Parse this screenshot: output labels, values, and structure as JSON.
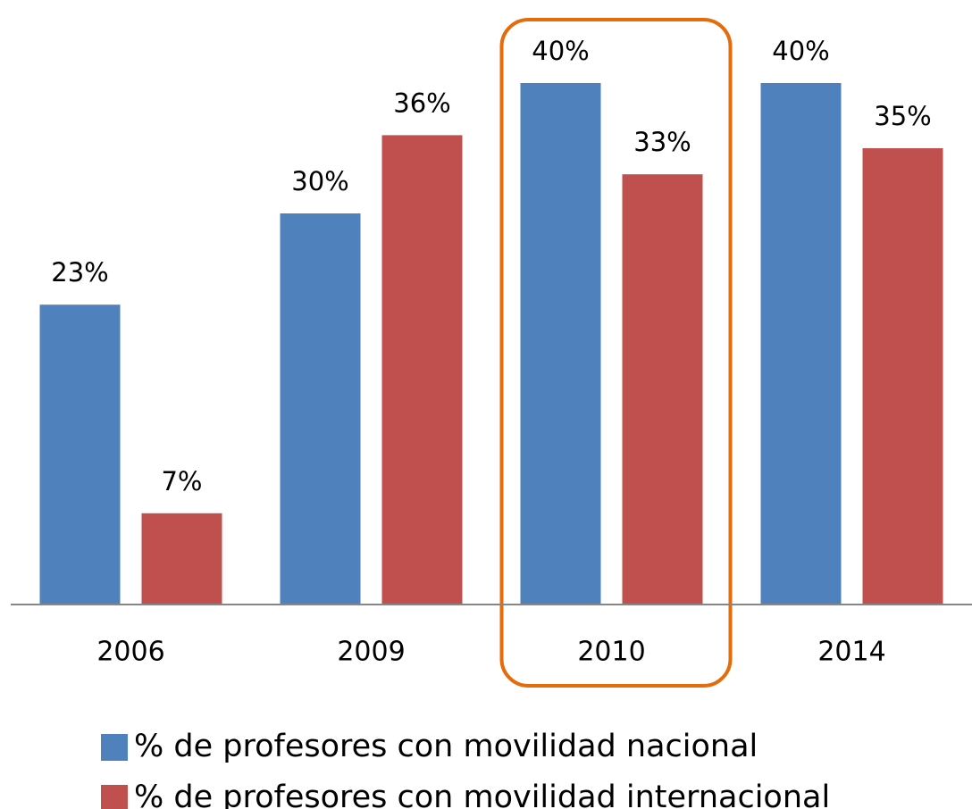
{
  "chart_data": {
    "type": "bar",
    "categories": [
      "2006",
      "2009",
      "2010",
      "2014"
    ],
    "series": [
      {
        "name": "% de profesores con movilidad nacional",
        "color": "#4f81bd",
        "values": [
          23,
          30,
          40,
          40
        ],
        "value_labels": [
          "23%",
          "30%",
          "40%",
          "40%"
        ]
      },
      {
        "name": "% de profesores con movilidad internacional",
        "color": "#c0504d",
        "values": [
          7,
          36,
          33,
          35
        ],
        "value_labels": [
          "7%",
          "36%",
          "33%",
          "35%"
        ]
      }
    ],
    "ylim": [
      0,
      40
    ],
    "highlight": {
      "category": "2010",
      "color": "#e46c0a"
    }
  }
}
